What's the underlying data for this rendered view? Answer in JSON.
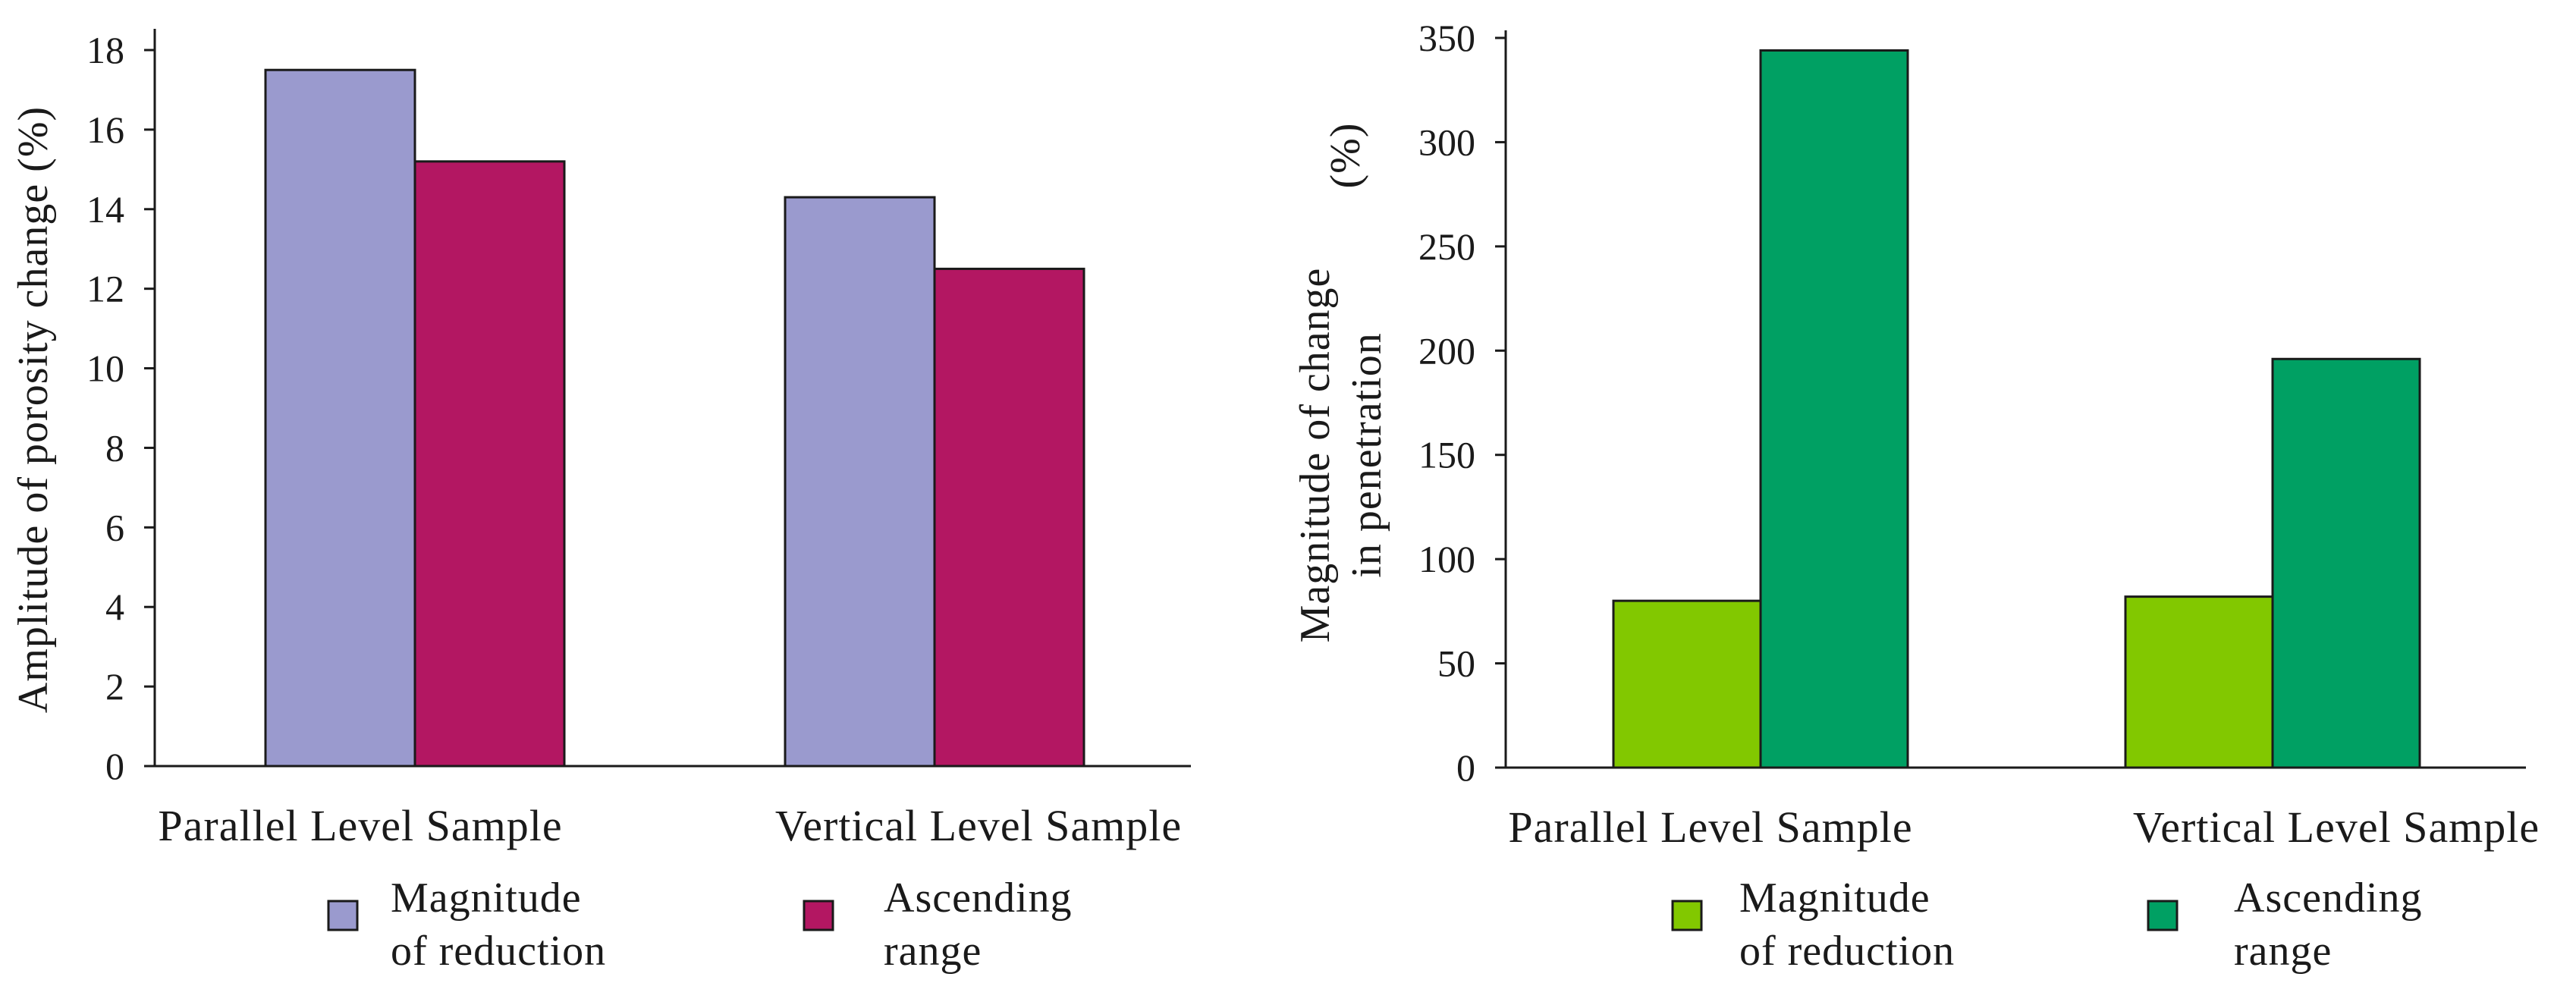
{
  "colors": {
    "left_reduction": "#9a9ace",
    "left_ascending": "#b31762",
    "right_reduction": "#82c800",
    "right_ascending": "#00a063"
  },
  "chart_data": [
    {
      "type": "bar",
      "categories": [
        "Parallel Level Sample",
        "Vertical Level Sample"
      ],
      "series": [
        {
          "name": "Magnitude of reduction",
          "values": [
            17.5,
            14.3
          ]
        },
        {
          "name": "Ascending range",
          "values": [
            15.2,
            12.5
          ]
        }
      ],
      "ylabel": "Amplitude of porosity change  (%)",
      "ylim": [
        0,
        18
      ],
      "yticks": [
        0,
        2,
        4,
        6,
        8,
        10,
        12,
        14,
        16,
        18
      ],
      "legend": [
        {
          "line1": "Magnitude",
          "line2": "of reduction"
        },
        {
          "line1": "Ascending",
          "line2": "range"
        }
      ]
    },
    {
      "type": "bar",
      "categories": [
        "Parallel Level Sample",
        "Vertical Level Sample"
      ],
      "series": [
        {
          "name": "Magnitude of reduction",
          "values": [
            80,
            82
          ]
        },
        {
          "name": "Ascending range",
          "values": [
            344,
            196
          ]
        }
      ],
      "ylabel_line1": "Magnitude of change",
      "ylabel_line2": "in penetration",
      "ylabel_unit": "(%)",
      "ylim": [
        0,
        350
      ],
      "yticks": [
        0,
        50,
        100,
        150,
        200,
        250,
        300,
        350
      ],
      "legend": [
        {
          "line1": "Magnitude",
          "line2": "of reduction"
        },
        {
          "line1": "Ascending",
          "line2": "range"
        }
      ]
    }
  ]
}
